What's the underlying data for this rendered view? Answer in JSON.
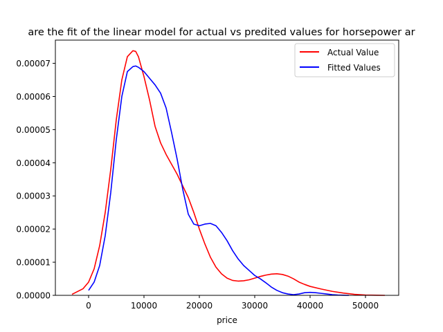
{
  "chart_data": {
    "type": "line",
    "title": "are the fit of the linear model for actual vs predited values for horsepower ar",
    "xlabel": "price",
    "ylabel": "",
    "xlim": [
      -6000,
      56000
    ],
    "ylim": [
      0,
      7.7e-05
    ],
    "xticks": [
      0,
      10000,
      20000,
      30000,
      40000,
      50000
    ],
    "xtick_labels": [
      "0",
      "10000",
      "20000",
      "30000",
      "40000",
      "50000"
    ],
    "yticks": [
      0,
      1e-05,
      2e-05,
      3e-05,
      4e-05,
      5e-05,
      6e-05,
      7e-05
    ],
    "ytick_labels": [
      "0.00000",
      "0.00001",
      "0.00002",
      "0.00003",
      "0.00004",
      "0.00005",
      "0.00006",
      "0.00007"
    ],
    "grid": false,
    "legend_position": "top-right",
    "series": [
      {
        "name": "Actual Value",
        "color": "#ff0000",
        "x": [
          -3000,
          -1000,
          0,
          1000,
          2000,
          3000,
          4000,
          5000,
          6000,
          7000,
          8000,
          8500,
          9000,
          9500,
          10000,
          11000,
          12000,
          13000,
          14000,
          15000,
          16000,
          17000,
          18000,
          19000,
          20000,
          21000,
          22000,
          23000,
          24000,
          25000,
          26000,
          27000,
          28000,
          29000,
          30000,
          31000,
          32000,
          33000,
          34000,
          35000,
          36000,
          37000,
          38000,
          39000,
          40000,
          42000,
          44000,
          46000,
          48000,
          50000,
          52000,
          53500
        ],
        "y": [
          3e-07,
          2e-06,
          4e-06,
          8e-06,
          1.5e-05,
          2.5e-05,
          3.8e-05,
          5.3e-05,
          6.5e-05,
          7.2e-05,
          7.38e-05,
          7.36e-05,
          7.2e-05,
          6.9e-05,
          6.6e-05,
          5.9e-05,
          5.1e-05,
          4.6e-05,
          4.25e-05,
          3.95e-05,
          3.65e-05,
          3.3e-05,
          2.95e-05,
          2.5e-05,
          2e-05,
          1.55e-05,
          1.15e-05,
          8.5e-06,
          6.5e-06,
          5.2e-06,
          4.5e-06,
          4.3e-06,
          4.4e-06,
          4.7e-06,
          5.2e-06,
          5.7e-06,
          6.1e-06,
          6.4e-06,
          6.5e-06,
          6.3e-06,
          5.8e-06,
          5e-06,
          4e-06,
          3.3e-06,
          2.7e-06,
          1.9e-06,
          1.2e-06,
          7e-07,
          3e-07,
          1e-07,
          3e-08,
          0.0
        ]
      },
      {
        "name": "Fitted Values",
        "color": "#0000ff",
        "x": [
          0,
          1000,
          2000,
          3000,
          4000,
          5000,
          6000,
          7000,
          8000,
          8500,
          9000,
          10000,
          11000,
          12000,
          13000,
          14000,
          15000,
          16000,
          17000,
          18000,
          19000,
          20000,
          21000,
          22000,
          23000,
          24000,
          25000,
          26000,
          27000,
          28000,
          29000,
          30000,
          31000,
          32000,
          33000,
          34000,
          35000,
          36000,
          37000,
          38000,
          39000,
          40000,
          41000,
          42000,
          43000,
          44000,
          45000,
          46000,
          47000
        ],
        "y": [
          1.5e-06,
          4e-06,
          9e-06,
          1.8e-05,
          3.1e-05,
          4.7e-05,
          6e-05,
          6.75e-05,
          6.9e-05,
          6.92e-05,
          6.88e-05,
          6.75e-05,
          6.55e-05,
          6.35e-05,
          6.1e-05,
          5.65e-05,
          4.9e-05,
          4.1e-05,
          3.2e-05,
          2.45e-05,
          2.15e-05,
          2.1e-05,
          2.15e-05,
          2.17e-05,
          2.1e-05,
          1.9e-05,
          1.65e-05,
          1.35e-05,
          1.1e-05,
          9e-06,
          7.5e-06,
          6e-06,
          5e-06,
          3.8e-06,
          2.5e-06,
          1.5e-06,
          8e-07,
          4e-07,
          2e-07,
          4e-07,
          8e-07,
          9e-07,
          8e-07,
          6e-07,
          4e-07,
          2e-07,
          1e-07,
          4e-08,
          0.0
        ]
      }
    ]
  }
}
